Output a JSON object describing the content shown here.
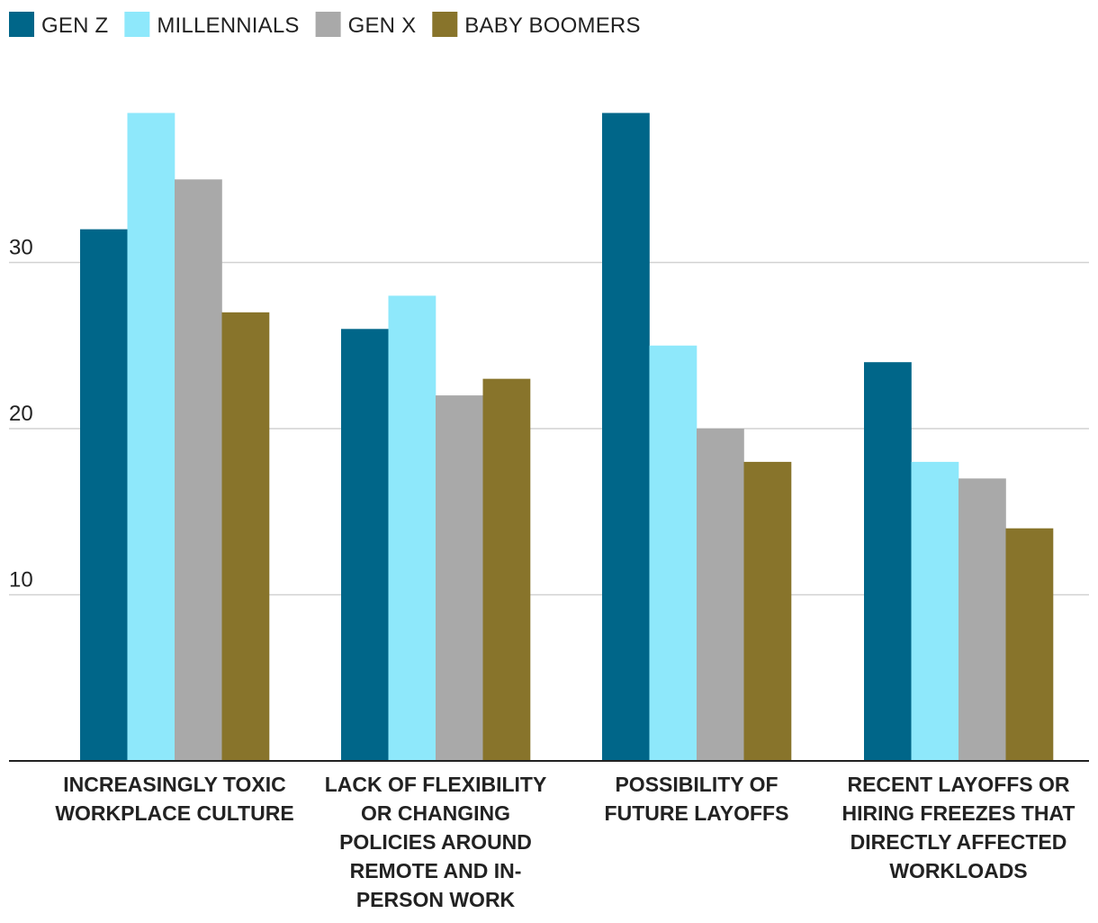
{
  "chart_data": {
    "type": "bar",
    "title": "",
    "xlabel": "",
    "ylabel": "",
    "ylim": [
      0,
      40
    ],
    "yticks": [
      10,
      20,
      30
    ],
    "grid": true,
    "legend_position": "top-left",
    "categories": [
      "INCREASINGLY TOXIC WORKPLACE CULTURE",
      "LACK OF FLEXIBILITY OR CHANGING POLICIES AROUND REMOTE AND IN-PERSON WORK",
      "POSSIBILITY OF FUTURE LAYOFFS",
      "RECENT LAYOFFS OR HIRING FREEZES THAT DIRECTLY AFFECTED WORKLOADS"
    ],
    "category_label_lines": [
      [
        "INCREASINGLY TOXIC",
        "WORKPLACE CULTURE"
      ],
      [
        "LACK OF FLEXIBILITY",
        "OR CHANGING",
        "POLICIES AROUND",
        "REMOTE AND IN-",
        "PERSON WORK"
      ],
      [
        "POSSIBILITY OF",
        "FUTURE LAYOFFS"
      ],
      [
        "RECENT LAYOFFS OR",
        "HIRING FREEZES THAT",
        "DIRECTLY AFFECTED",
        "WORKLOADS"
      ]
    ],
    "series": [
      {
        "name": "GEN Z",
        "color": "#006689",
        "values": [
          32,
          26,
          39,
          24
        ]
      },
      {
        "name": "MILLENNIALS",
        "color": "#8ee8fb",
        "values": [
          39,
          28,
          25,
          18
        ]
      },
      {
        "name": "GEN X",
        "color": "#a9a9a9",
        "values": [
          35,
          22,
          20,
          17
        ]
      },
      {
        "name": "BABY BOOMERS",
        "color": "#88742b",
        "values": [
          27,
          23,
          18,
          14
        ]
      }
    ]
  }
}
